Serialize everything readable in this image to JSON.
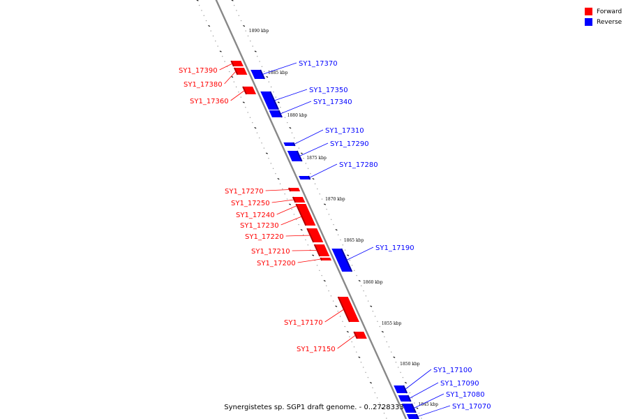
{
  "title": "Synergistetes sp. SGP1 draft genome. - 0..2728333",
  "legend": [
    {
      "label": "Forward",
      "color": "#ff0000"
    },
    {
      "label": "Reverse",
      "color": "#0000ff"
    }
  ],
  "colors": {
    "forward": "#ff0000",
    "reverse": "#0000ff",
    "axis": "#888888"
  },
  "ticks": [
    "1890 kbp",
    "1885 kbp",
    "1880 kbp",
    "1875 kbp",
    "1870 kbp",
    "1865 kbp",
    "1860 kbp",
    "1855 kbp",
    "1850 kbp",
    "1845 kbp"
  ],
  "genes": [
    {
      "id": "SY1_17390",
      "strand": "Forward"
    },
    {
      "id": "SY1_17380",
      "strand": "Forward"
    },
    {
      "id": "SY1_17370",
      "strand": "Reverse"
    },
    {
      "id": "SY1_17360",
      "strand": "Forward"
    },
    {
      "id": "SY1_17350",
      "strand": "Reverse"
    },
    {
      "id": "SY1_17340",
      "strand": "Reverse"
    },
    {
      "id": "SY1_17310",
      "strand": "Reverse"
    },
    {
      "id": "SY1_17290",
      "strand": "Reverse"
    },
    {
      "id": "SY1_17280",
      "strand": "Reverse"
    },
    {
      "id": "SY1_17270",
      "strand": "Forward"
    },
    {
      "id": "SY1_17250",
      "strand": "Forward"
    },
    {
      "id": "SY1_17240",
      "strand": "Forward"
    },
    {
      "id": "SY1_17230",
      "strand": "Forward"
    },
    {
      "id": "SY1_17220",
      "strand": "Forward"
    },
    {
      "id": "SY1_17210",
      "strand": "Forward"
    },
    {
      "id": "SY1_17200",
      "strand": "Forward"
    },
    {
      "id": "SY1_17190",
      "strand": "Reverse"
    },
    {
      "id": "SY1_17170",
      "strand": "Forward"
    },
    {
      "id": "SY1_17150",
      "strand": "Forward"
    },
    {
      "id": "SY1_17100",
      "strand": "Reverse"
    },
    {
      "id": "SY1_17090",
      "strand": "Reverse"
    },
    {
      "id": "SY1_17080",
      "strand": "Reverse"
    },
    {
      "id": "SY1_17070",
      "strand": "Reverse"
    }
  ]
}
